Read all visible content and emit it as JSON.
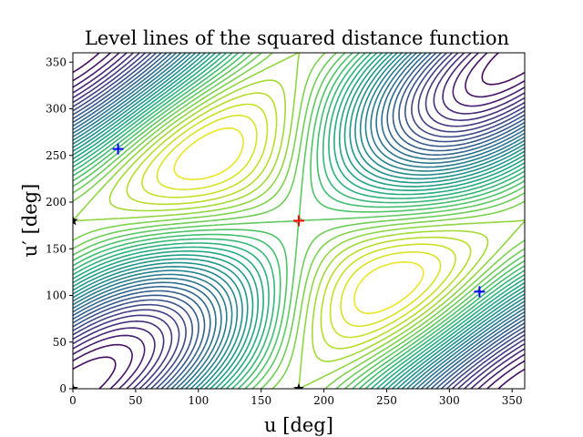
{
  "chart_data": {
    "type": "contour",
    "title": "Level lines of the squared distance function",
    "xlabel": "u [deg]",
    "ylabel": "u′ [deg]",
    "xlim": [
      0,
      360
    ],
    "ylim": [
      0,
      360
    ],
    "xticks": [
      "0",
      "50",
      "100",
      "150",
      "200",
      "250",
      "300",
      "350"
    ],
    "yticks": [
      "0",
      "50",
      "100",
      "150",
      "200",
      "250",
      "300",
      "350"
    ],
    "grid": false,
    "colormap": "viridis",
    "markers": [
      {
        "name": "maximum",
        "symbol": "+",
        "color": "#ff0000",
        "x": 180,
        "y": 180
      },
      {
        "name": "minimum",
        "symbol": "+",
        "color": "#0000ff",
        "x": 36,
        "y": 257
      },
      {
        "name": "minimum",
        "symbol": "+",
        "color": "#0000ff",
        "x": 324,
        "y": 104
      },
      {
        "name": "saddle",
        "symbol": "*",
        "color": "#000000",
        "x": 0,
        "y": 180
      },
      {
        "name": "saddle",
        "symbol": "*",
        "color": "#000000",
        "x": 180,
        "y": 0
      },
      {
        "name": "saddle",
        "symbol": "*",
        "color": "#000000",
        "x": 0,
        "y": 0
      }
    ]
  }
}
